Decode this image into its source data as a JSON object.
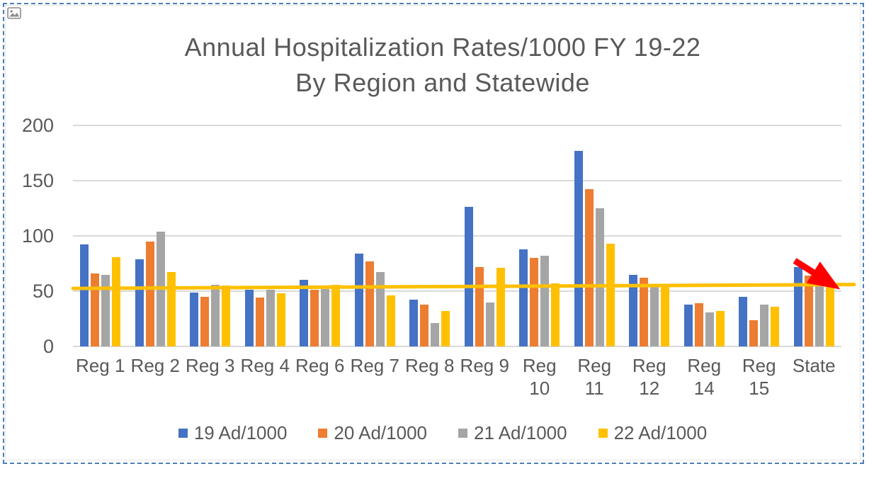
{
  "slide": {
    "selection_border_color": "#4b80b8",
    "placeholder_icon": "picture-icon"
  },
  "chart_data": {
    "type": "bar",
    "title_lines": [
      "Annual Hospitalization Rates/1000 FY 19-22",
      "By Region and Statewide"
    ],
    "categories": [
      "Reg 1",
      "Reg 2",
      "Reg 3",
      "Reg 4",
      "Reg 6",
      "Reg 7",
      "Reg 8",
      "Reg 9",
      "Reg 10",
      "Reg 11",
      "Reg 12",
      "Reg 14",
      "Reg 15",
      "State"
    ],
    "wrapped_categories": [
      [
        "Reg 1"
      ],
      [
        "Reg 2"
      ],
      [
        "Reg 3"
      ],
      [
        "Reg 4"
      ],
      [
        "Reg 6"
      ],
      [
        "Reg 7"
      ],
      [
        "Reg 8"
      ],
      [
        "Reg 9"
      ],
      [
        "Reg",
        "10"
      ],
      [
        "Reg",
        "11"
      ],
      [
        "Reg",
        "12"
      ],
      [
        "Reg",
        "14"
      ],
      [
        "Reg",
        "15"
      ],
      [
        "State"
      ]
    ],
    "series": [
      {
        "name": "19 Ad/1000",
        "color": "#4472C4",
        "values": [
          92,
          79,
          49,
          51,
          60,
          84,
          42,
          126,
          88,
          177,
          65,
          38,
          45,
          72
        ]
      },
      {
        "name": "20 Ad/1000",
        "color": "#ED7D31",
        "values": [
          66,
          95,
          45,
          44,
          51,
          77,
          38,
          72,
          80,
          142,
          62,
          39,
          24,
          64
        ]
      },
      {
        "name": "21 Ad/1000",
        "color": "#A5A5A5",
        "values": [
          65,
          104,
          56,
          51,
          52,
          67,
          21,
          40,
          82,
          125,
          54,
          31,
          38,
          56
        ]
      },
      {
        "name": "22 Ad/1000",
        "color": "#FFC000",
        "values": [
          81,
          67,
          55,
          48,
          56,
          46,
          32,
          71,
          57,
          93,
          55,
          32,
          36,
          56
        ]
      }
    ],
    "y_ticks": [
      0,
      50,
      100,
      150,
      200
    ],
    "ylim": [
      0,
      200
    ],
    "grid": true,
    "gridline_color": "#d9d9d9",
    "text_color": "#595959",
    "legend_position": "bottom",
    "trendline": {
      "series": "22 Ad/1000",
      "color": "#FFC000",
      "start_value": 52.5,
      "end_value": 56
    },
    "annotation": {
      "type": "downward-arrow",
      "color": "#FF0000",
      "near_category": "State"
    }
  }
}
